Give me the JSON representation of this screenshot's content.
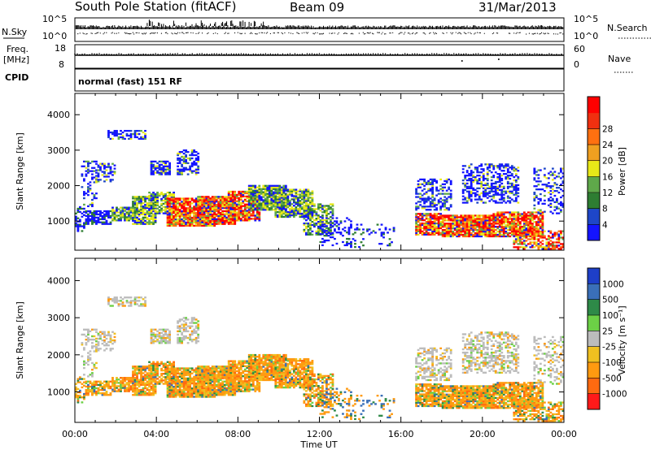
{
  "header": {
    "station": "South Pole Station (fitACF)",
    "beam": "Beam 09",
    "date": "31/Mar/2013"
  },
  "nsky_panel": {
    "left_label": "N.Sky",
    "left_ticks": [
      "10^5",
      "10^0"
    ],
    "right_ticks": [
      "10^5",
      "10^0"
    ],
    "right_label": "N.Search"
  },
  "freq_panel": {
    "left_label_1": "Freq.",
    "left_label_2": "[MHz]",
    "left_ticks": [
      "18",
      "8"
    ],
    "right_ticks": [
      "60",
      "0"
    ],
    "right_label": "Nave"
  },
  "cpid_panel": {
    "label": "CPID",
    "text": "normal (fast) 151 RF"
  },
  "chart_data": [
    {
      "type": "heatmap",
      "name": "power",
      "ylabel": "Slant Range [km]",
      "xlabel": "",
      "ylim": [
        180,
        4600
      ],
      "yticks": [
        "1000",
        "2000",
        "3000",
        "4000"
      ],
      "colorbar_label": "Power [dB]",
      "colorbar_ticks": [
        "4",
        "8",
        "12",
        "16",
        "20",
        "24",
        "28"
      ],
      "colors": [
        "#1414ff",
        "#1e46c8",
        "#2e7d32",
        "#5fa84a",
        "#e8e818",
        "#f0a020",
        "#ff7010",
        "#f03010",
        "#ff0000"
      ]
    },
    {
      "type": "heatmap",
      "name": "velocity",
      "ylabel": "Slant Range [km]",
      "xlabel": "Time UT",
      "ylim": [
        180,
        4600
      ],
      "yticks": [
        "1000",
        "2000",
        "3000",
        "4000"
      ],
      "xticks": [
        "00:00",
        "04:00",
        "08:00",
        "12:00",
        "16:00",
        "20:00",
        "00:00"
      ],
      "colorbar_label": "Velocity [m s⁻¹]",
      "colorbar_ticks": [
        "1000",
        "500",
        "100",
        "25",
        "-25",
        "-100",
        "-500",
        "-1000"
      ],
      "colors": [
        "#1e3fc8",
        "#3a6fb8",
        "#2e8a48",
        "#6cd046",
        "#bcbcbc",
        "#f0c020",
        "#ff9a10",
        "#ff6a10",
        "#ff1a1a"
      ]
    }
  ]
}
